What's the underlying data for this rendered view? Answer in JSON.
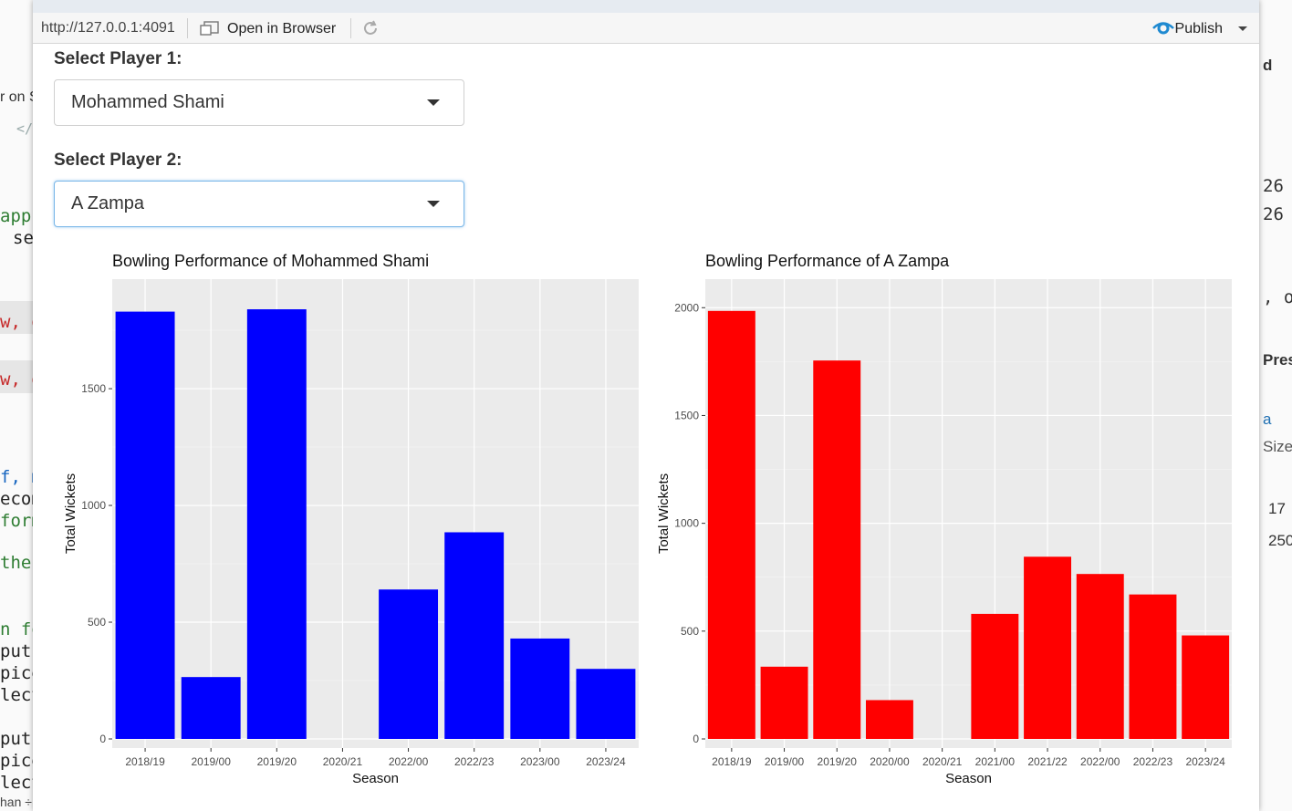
{
  "background_ide": {
    "left_fragments": [
      "r on S",
      "</:",
      "app",
      "se",
      "w, da",
      "w, da",
      "f, m",
      "ecom",
      "form",
      "the",
      "n fo",
      "putI",
      "pice",
      "lect",
      "putI",
      "pice",
      "lect",
      "han ÷"
    ],
    "right_fragments": [
      "d",
      "26",
      "26",
      ", o",
      "Prese",
      "a",
      "Size",
      "17",
      "250"
    ]
  },
  "toolbar": {
    "url": "http://127.0.0.1:4091",
    "open_in_browser_label": "Open in Browser",
    "publish_label": "Publish"
  },
  "form": {
    "player1_label": "Select Player 1:",
    "player1_value": "Mohammed Shami",
    "player2_label": "Select Player 2:",
    "player2_value": "A Zampa"
  },
  "colors": {
    "player1_bar": "#0000ff",
    "player2_bar": "#ff0000",
    "panel_bg": "#ebebeb",
    "accent_publish": "#1f8ad1"
  },
  "chart_data": [
    {
      "type": "bar",
      "title": "Bowling Performance of Mohammed Shami",
      "xlabel": "Season",
      "ylabel": "Total Wickets",
      "categories": [
        "2018/19",
        "2019/00",
        "2019/20",
        "2020/21",
        "2022/00",
        "2022/23",
        "2023/00",
        "2023/24"
      ],
      "values": [
        1830,
        265,
        1840,
        0,
        640,
        885,
        430,
        300
      ],
      "ylim": [
        0,
        1930
      ],
      "yticks": [
        0,
        500,
        1000,
        1500
      ],
      "ytick_labels": [
        "0",
        "500",
        "1000",
        "1500"
      ],
      "color": "#0000ff",
      "grid": true
    },
    {
      "type": "bar",
      "title": "Bowling Performance of A Zampa",
      "xlabel": "Season",
      "ylabel": "Total Wickets",
      "categories": [
        "2018/19",
        "2019/00",
        "2019/20",
        "2020/00",
        "2020/21",
        "2021/00",
        "2021/22",
        "2022/00",
        "2022/23",
        "2023/24"
      ],
      "values": [
        1985,
        335,
        1755,
        180,
        0,
        580,
        845,
        765,
        670,
        480
      ],
      "ylim": [
        0,
        2090
      ],
      "yticks": [
        0,
        500,
        1000,
        1500,
        2000
      ],
      "ytick_labels": [
        "0",
        "500",
        "1000",
        "1500",
        "2000"
      ],
      "color": "#ff0000",
      "grid": true
    }
  ]
}
